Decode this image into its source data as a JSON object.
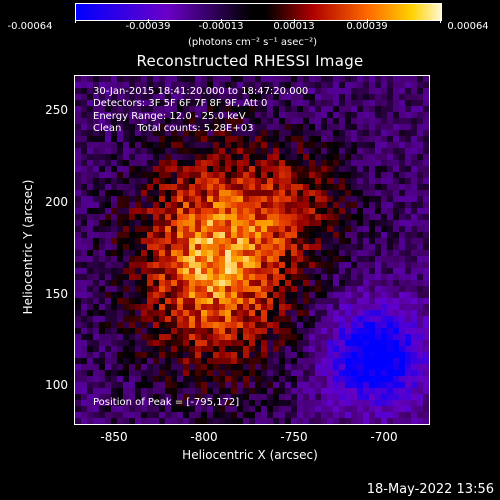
{
  "colorbar": {
    "ticks": [
      "-0.00064",
      "-0.00039",
      "-0.00013",
      "0.00013",
      "0.00039",
      "0.00064"
    ],
    "unit": "(photons cm⁻² s⁻¹ asec⁻²)",
    "colors": [
      "#0000ff",
      "#6a00c8",
      "#000000",
      "#b00000",
      "#ff6a00",
      "#ffd200",
      "#fff7d0"
    ]
  },
  "title": "Reconstructed RHESSI Image",
  "info": {
    "time_range": "30-Jan-2015 18:41:20.000 to 18:47:20.000",
    "detectors": "Detectors: 3F 5F 6F 7F 8F 9F, Att 0",
    "energy": "Energy Range: 12.0 - 25.0 keV",
    "clean": "Clean     Total counts: 5.28E+03",
    "peak": "Position of Peak = [-795,172]"
  },
  "axes": {
    "x_label": "Heliocentric X (arcsec)",
    "y_label": "Heliocentric Y (arcsec)",
    "x_ticks": [
      "-850",
      "-800",
      "-750",
      "-700"
    ],
    "y_ticks": [
      "250",
      "200",
      "150",
      "100"
    ],
    "xlim": [
      -873,
      -675
    ],
    "ylim": [
      80,
      275
    ]
  },
  "image_data": {
    "peak": {
      "x": -795,
      "y": 172,
      "label": "Position of Peak"
    },
    "negative_region": {
      "x": -705,
      "y": 118
    }
  },
  "timestamp": "18-May-2022 13:56"
}
